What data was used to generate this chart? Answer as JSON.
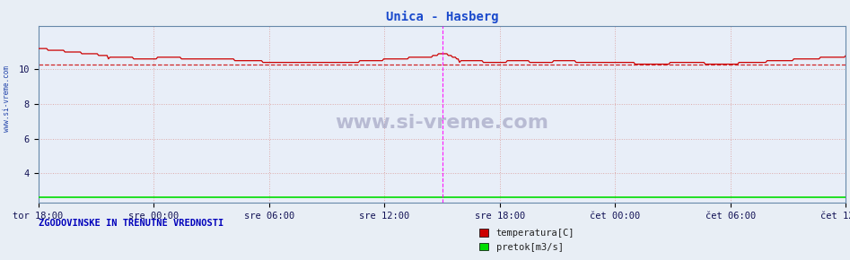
{
  "title": "Unica - Hasberg",
  "title_color": "#1a4acc",
  "bg_color": "#e8eef5",
  "plot_bg_color": "#e8eef8",
  "grid_color_h": "#ddaaaa",
  "grid_color_v": "#ddaaaa",
  "xlabel_ticks": [
    "tor 18:00",
    "sre 00:00",
    "sre 06:00",
    "sre 12:00",
    "sre 18:00",
    "čet 00:00",
    "čet 06:00",
    "čet 12:00"
  ],
  "yticks": [
    4,
    6,
    8,
    10
  ],
  "ylim": [
    2.3,
    12.5
  ],
  "xlim": [
    0,
    575
  ],
  "temp_avg": 10.3,
  "temp_color": "#cc0000",
  "flow_color": "#00dd00",
  "flow_value": 2.6,
  "vline_color": "#ff00ff",
  "watermark": "www.si-vreme.com",
  "left_label": "www.si-vreme.com",
  "bottom_label": "ZGODOVINSKE IN TRENUTNE VREDNOSTI",
  "legend_temp": "temperatura[C]",
  "legend_flow": "pretok[m3/s]",
  "spine_color": "#6688aa",
  "figsize": [
    9.47,
    2.9
  ],
  "dpi": 100
}
